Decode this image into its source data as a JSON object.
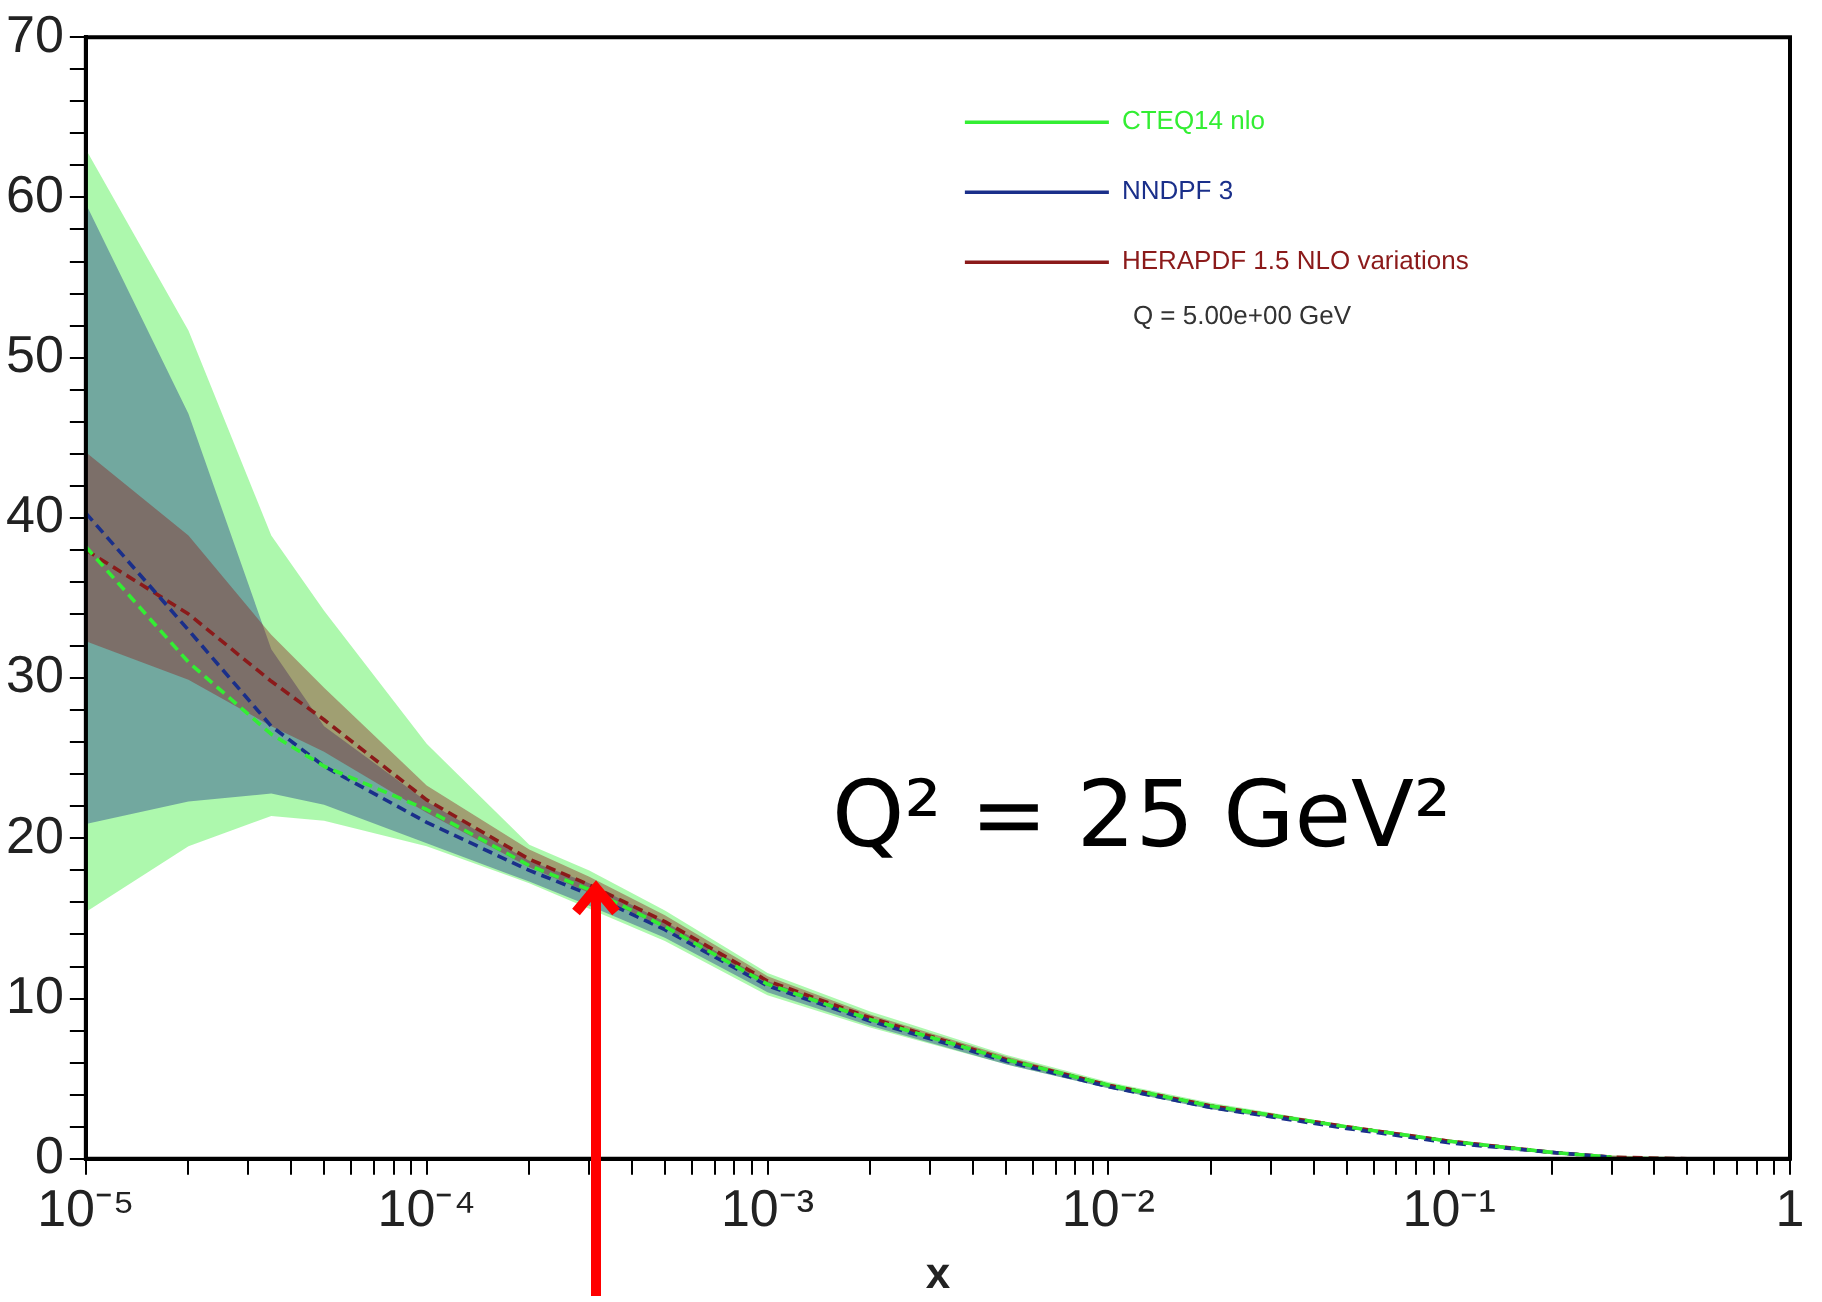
{
  "chart_data": {
    "type": "line",
    "xlabel": "x",
    "log": "x",
    "grid": false,
    "legend": "top right",
    "marker": "none",
    "xlim": [
      1e-05,
      1
    ],
    "ylim": [
      0,
      70
    ],
    "xticks": [
      {
        "value": 1e-05,
        "label": "10⁻⁵"
      },
      {
        "value": 2e-05,
        "label": null
      },
      {
        "value": 3e-05,
        "label": null
      },
      {
        "value": 4e-05,
        "label": null
      },
      {
        "value": 5e-05,
        "label": null
      },
      {
        "value": 6e-05,
        "label": null
      },
      {
        "value": 7e-05,
        "label": null
      },
      {
        "value": 8e-05,
        "label": null
      },
      {
        "value": 9e-05,
        "label": null
      },
      {
        "value": 0.0001,
        "label": "10⁻⁴"
      },
      {
        "value": 0.0002,
        "label": null
      },
      {
        "value": 0.0003,
        "label": null
      },
      {
        "value": 0.0004,
        "label": null
      },
      {
        "value": 0.0005,
        "label": null
      },
      {
        "value": 0.0006,
        "label": null
      },
      {
        "value": 0.0007,
        "label": null
      },
      {
        "value": 0.0008,
        "label": null
      },
      {
        "value": 0.0009,
        "label": null
      },
      {
        "value": 0.001,
        "label": "10⁻³"
      },
      {
        "value": 0.002,
        "label": null
      },
      {
        "value": 0.003,
        "label": null
      },
      {
        "value": 0.004,
        "label": null
      },
      {
        "value": 0.005,
        "label": null
      },
      {
        "value": 0.006,
        "label": null
      },
      {
        "value": 0.007,
        "label": null
      },
      {
        "value": 0.008,
        "label": null
      },
      {
        "value": 0.009,
        "label": null
      },
      {
        "value": 0.01,
        "label": "10⁻²"
      },
      {
        "value": 0.02,
        "label": null
      },
      {
        "value": 0.03,
        "label": null
      },
      {
        "value": 0.04,
        "label": null
      },
      {
        "value": 0.05,
        "label": null
      },
      {
        "value": 0.06,
        "label": null
      },
      {
        "value": 0.07,
        "label": null
      },
      {
        "value": 0.08,
        "label": null
      },
      {
        "value": 0.09,
        "label": null
      },
      {
        "value": 0.1,
        "label": "10⁻¹"
      },
      {
        "value": 0.2,
        "label": null
      },
      {
        "value": 0.3,
        "label": null
      },
      {
        "value": 0.4,
        "label": null
      },
      {
        "value": 0.5,
        "label": null
      },
      {
        "value": 0.6,
        "label": null
      },
      {
        "value": 0.7,
        "label": null
      },
      {
        "value": 0.8,
        "label": null
      },
      {
        "value": 0.9,
        "label": null
      },
      1
    ],
    "yticks": [
      0,
      {
        "value": 2,
        "label": null
      },
      {
        "value": 4,
        "label": null
      },
      {
        "value": 6,
        "label": null
      },
      {
        "value": 8,
        "label": null
      },
      10,
      {
        "value": 12,
        "label": null
      },
      {
        "value": 14,
        "label": null
      },
      {
        "value": 16,
        "label": null
      },
      {
        "value": 18,
        "label": null
      },
      20,
      {
        "value": 22,
        "label": null
      },
      {
        "value": 24,
        "label": null
      },
      {
        "value": 26,
        "label": null
      },
      {
        "value": 28,
        "label": null
      },
      30,
      {
        "value": 32,
        "label": null
      },
      {
        "value": 34,
        "label": null
      },
      {
        "value": 36,
        "label": null
      },
      {
        "value": 38,
        "label": null
      },
      40,
      {
        "value": 42,
        "label": null
      },
      {
        "value": 44,
        "label": null
      },
      {
        "value": 46,
        "label": null
      },
      {
        "value": 48,
        "label": null
      },
      50,
      {
        "value": 52,
        "label": null
      },
      {
        "value": 54,
        "label": null
      },
      {
        "value": 56,
        "label": null
      },
      {
        "value": 58,
        "label": null
      },
      60,
      {
        "value": 62,
        "label": null
      },
      {
        "value": 64,
        "label": null
      },
      {
        "value": 66,
        "label": null
      },
      {
        "value": 68,
        "label": null
      },
      70
    ],
    "x": [
      1e-05,
      2e-05,
      3.5e-05,
      5e-05,
      0.0001,
      0.0002,
      0.0003,
      0.0005,
      0.001,
      0.002,
      0.005,
      0.01,
      0.02,
      0.05,
      0.1,
      0.2,
      0.3,
      0.5,
      1
    ],
    "series": [
      {
        "name": "CTEQ14 nlo",
        "color": "#33ee33",
        "line_style": "dashed",
        "values": [
          38.2,
          31,
          26.5,
          24.5,
          21.8,
          18.3,
          16.8,
          14.5,
          10.9,
          8.7,
          6.2,
          4.6,
          3.3,
          2.0,
          1.1,
          0.4,
          0.1,
          null,
          null
        ],
        "upper": [
          63,
          51.7,
          38.9,
          34.2,
          25.9,
          19.6,
          18,
          15.5,
          11.6,
          9.2,
          6.5,
          4.8,
          3.5,
          2.1,
          1.2,
          0.5,
          0.2,
          0.1,
          0
        ],
        "lower": [
          15.4,
          19.5,
          21.4,
          21.1,
          19.5,
          17.2,
          15.6,
          13.6,
          10.2,
          8.2,
          5.9,
          4.4,
          3.1,
          1.9,
          1.0,
          0.3,
          0,
          0,
          0
        ]
      },
      {
        "name": "NNDPF 3",
        "color": "#1a2f8a",
        "line_style": "dashed",
        "values": [
          40.3,
          33,
          27,
          24.5,
          21,
          18,
          16.5,
          14.3,
          10.8,
          8.6,
          6.1,
          4.5,
          3.2,
          1.9,
          1.0,
          0.4,
          0.1,
          null,
          null
        ],
        "upper": [
          59.6,
          46.5,
          31.8,
          27,
          22.3,
          18.6,
          17.2,
          14.8,
          11.1,
          8.8,
          6.2,
          4.6,
          3.3,
          2.0,
          1.1,
          0.4,
          0.1,
          0,
          0
        ],
        "lower": [
          20.9,
          22.3,
          22.8,
          22.1,
          19.7,
          17.3,
          15.8,
          13.8,
          10.4,
          8.3,
          5.9,
          4.4,
          3.1,
          1.9,
          1.0,
          0.3,
          0,
          0,
          0
        ]
      },
      {
        "name": "HERAPDF 1.5 NLO variations",
        "color": "#8b1a1a",
        "line_style": "dashed",
        "values": [
          38,
          34,
          29.8,
          27.4,
          22.4,
          18.7,
          17.1,
          14.8,
          11.1,
          8.8,
          6.2,
          4.6,
          3.3,
          2.0,
          1.1,
          0.4,
          0.1,
          0,
          null
        ],
        "upper": [
          44.1,
          38.9,
          32.7,
          29.4,
          23.3,
          19.3,
          17.6,
          15.2,
          11.4,
          9.0,
          6.4,
          4.7,
          3.4,
          2.1,
          1.2,
          0.5,
          0.2,
          0,
          0
        ],
        "lower": [
          32.3,
          29.9,
          27,
          25.4,
          21.6,
          18.2,
          16.6,
          14.4,
          10.8,
          8.6,
          6.1,
          4.5,
          3.2,
          1.9,
          1.0,
          0.4,
          0.1,
          0,
          0
        ]
      }
    ],
    "annotations": [
      "Q = 5.00e+00 GeV",
      "Q² = 25 GeV²"
    ]
  }
}
